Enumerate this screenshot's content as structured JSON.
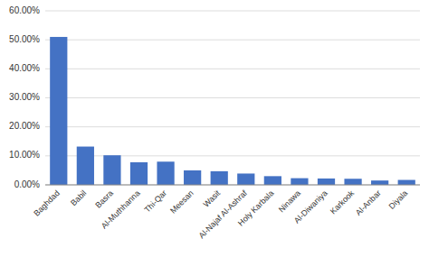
{
  "chart_data": {
    "type": "bar",
    "categories": [
      "Baghdad",
      "Babil",
      "Basra",
      "Al-Muthhanna",
      "Thi-Qar",
      "Meesan",
      "Wasit",
      "Al-Najaf Al-Ashraf",
      "Holy Karbala",
      "Ninawa",
      "Al-Diwaniya",
      "Karkook",
      "Al-Anbar",
      "Diyala"
    ],
    "values": [
      51.0,
      13.2,
      10.2,
      7.8,
      8.0,
      5.0,
      4.7,
      3.9,
      3.0,
      2.3,
      2.2,
      2.1,
      1.5,
      1.7
    ],
    "color": "#4472C4",
    "ylim": [
      0,
      60
    ],
    "yticks": [
      {
        "value": 0,
        "label": "0.00%"
      },
      {
        "value": 10,
        "label": "10.00%"
      },
      {
        "value": 20,
        "label": "20.00%"
      },
      {
        "value": 30,
        "label": "30.00%"
      },
      {
        "value": 40,
        "label": "40.00%"
      },
      {
        "value": 50,
        "label": "50.00%"
      },
      {
        "value": 60,
        "label": "60.00%"
      }
    ],
    "grid": true
  }
}
